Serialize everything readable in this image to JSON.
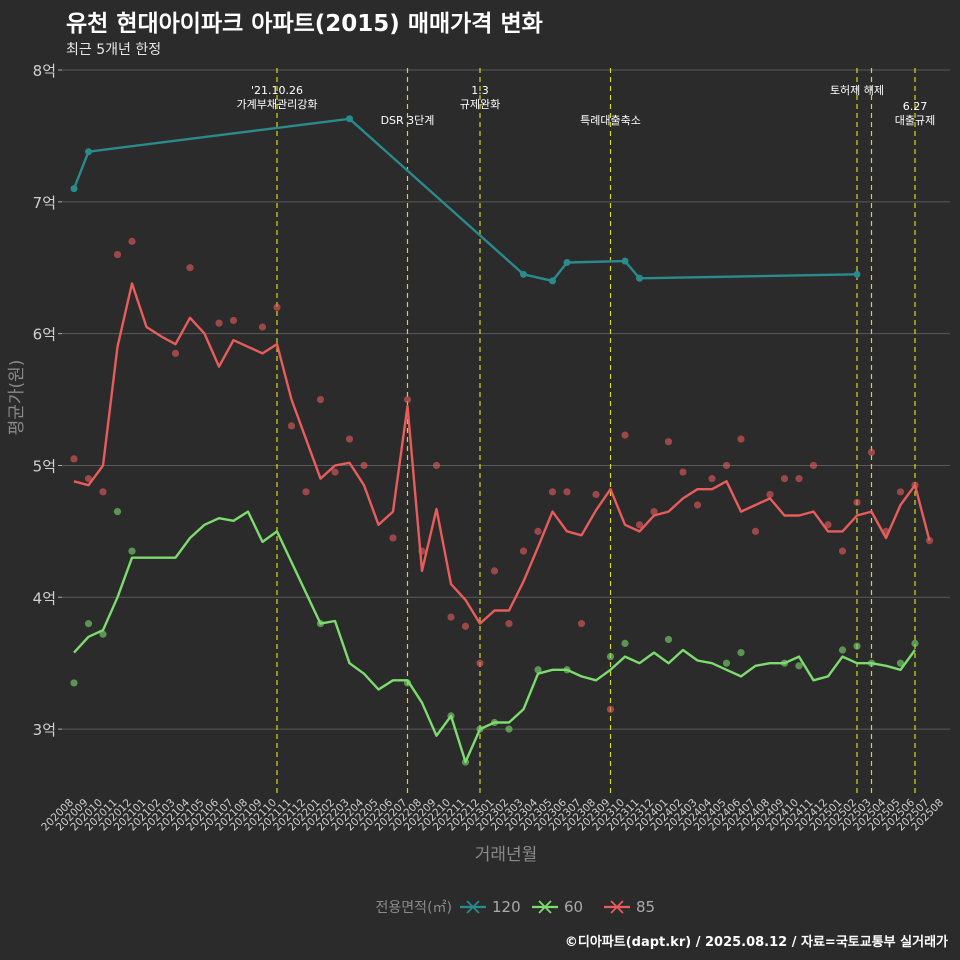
{
  "header": {
    "title": "유천 현대아이파크 아파트(2015) 매매가격 변화",
    "subtitle": "최근 5개년 한정"
  },
  "footer": {
    "credit": "©디아파트(dapt.kr) / 2025.08.12 / 자료=국토교통부 실거래가"
  },
  "chart_data": {
    "type": "line",
    "title": "유천 현대아이파크 아파트(2015) 매매가격 변화",
    "subtitle": "최근 5개년 한정",
    "xlabel": "거래년월",
    "ylabel": "평균가(원)",
    "ylim": [
      2.5,
      8.0
    ],
    "yticks": [
      {
        "v": 3,
        "label": "3억"
      },
      {
        "v": 4,
        "label": "4억"
      },
      {
        "v": 5,
        "label": "5억"
      },
      {
        "v": 6,
        "label": "6억"
      },
      {
        "v": 7,
        "label": "7억"
      },
      {
        "v": 8,
        "label": "8억"
      }
    ],
    "categories": [
      "202008",
      "202009",
      "202010",
      "202011",
      "202012",
      "202101",
      "202102",
      "202103",
      "202104",
      "202105",
      "202106",
      "202107",
      "202108",
      "202109",
      "202110",
      "202111",
      "202112",
      "202201",
      "202202",
      "202203",
      "202204",
      "202205",
      "202206",
      "202207",
      "202208",
      "202209",
      "202210",
      "202211",
      "202212",
      "202301",
      "202302",
      "202303",
      "202304",
      "202305",
      "202306",
      "202307",
      "202308",
      "202309",
      "202310",
      "202311",
      "202312",
      "202401",
      "202402",
      "202403",
      "202404",
      "202405",
      "202406",
      "202407",
      "202408",
      "202409",
      "202410",
      "202411",
      "202412",
      "202501",
      "202502",
      "202503",
      "202504",
      "202505",
      "202506",
      "202507",
      "202508"
    ],
    "grid": true,
    "legend": {
      "title": "전용면적(㎡)",
      "position": "bottom"
    },
    "series": [
      {
        "name": "120",
        "color": "#2a8a8c",
        "points": [
          [
            "202008",
            7.1
          ],
          [
            "202009",
            7.38
          ],
          [
            "202203",
            7.63
          ],
          [
            "202303",
            6.45
          ],
          [
            "202305",
            6.4
          ],
          [
            "202306",
            6.54
          ],
          [
            "202310",
            6.55
          ],
          [
            "202311",
            6.42
          ],
          [
            "202502",
            6.45
          ]
        ],
        "markers": []
      },
      {
        "name": "60",
        "color": "#7ddc6e",
        "points": [
          [
            "202008",
            3.58
          ],
          [
            "202009",
            3.7
          ],
          [
            "202010",
            3.75
          ],
          [
            "202011",
            4.0
          ],
          [
            "202012",
            4.3
          ],
          [
            "202103",
            4.3
          ],
          [
            "202104",
            4.45
          ],
          [
            "202105",
            4.55
          ],
          [
            "202106",
            4.6
          ],
          [
            "202107",
            4.58
          ],
          [
            "202108",
            4.65
          ],
          [
            "202109",
            4.42
          ],
          [
            "202110",
            4.5
          ],
          [
            "202201",
            3.8
          ],
          [
            "202202",
            3.82
          ],
          [
            "202203",
            3.5
          ],
          [
            "202204",
            3.42
          ],
          [
            "202205",
            3.3
          ],
          [
            "202206",
            3.37
          ],
          [
            "202207",
            3.37
          ],
          [
            "202208",
            3.2
          ],
          [
            "202209",
            2.95
          ],
          [
            "202210",
            3.1
          ],
          [
            "202211",
            2.75
          ],
          [
            "202212",
            3.0
          ],
          [
            "202301",
            3.05
          ],
          [
            "202302",
            3.05
          ],
          [
            "202303",
            3.15
          ],
          [
            "202304",
            3.42
          ],
          [
            "202305",
            3.45
          ],
          [
            "202306",
            3.45
          ],
          [
            "202307",
            3.4
          ],
          [
            "202308",
            3.37
          ],
          [
            "202309",
            3.45
          ],
          [
            "202310",
            3.55
          ],
          [
            "202311",
            3.5
          ],
          [
            "202312",
            3.58
          ],
          [
            "202401",
            3.5
          ],
          [
            "202402",
            3.6
          ],
          [
            "202403",
            3.52
          ],
          [
            "202404",
            3.5
          ],
          [
            "202405",
            3.45
          ],
          [
            "202406",
            3.4
          ],
          [
            "202407",
            3.48
          ],
          [
            "202408",
            3.5
          ],
          [
            "202409",
            3.5
          ],
          [
            "202410",
            3.55
          ],
          [
            "202411",
            3.37
          ],
          [
            "202412",
            3.4
          ],
          [
            "202501",
            3.55
          ],
          [
            "202502",
            3.5
          ],
          [
            "202503",
            3.5
          ],
          [
            "202504",
            3.48
          ],
          [
            "202505",
            3.45
          ],
          [
            "202506",
            3.6
          ]
        ],
        "markers": [
          [
            "202008",
            3.35
          ],
          [
            "202009",
            3.8
          ],
          [
            "202010",
            3.72
          ],
          [
            "202011",
            4.65
          ],
          [
            "202012",
            4.35
          ],
          [
            "202201",
            3.8
          ],
          [
            "202207",
            3.35
          ],
          [
            "202210",
            3.1
          ],
          [
            "202211",
            2.75
          ],
          [
            "202212",
            3.0
          ],
          [
            "202301",
            3.05
          ],
          [
            "202302",
            3.0
          ],
          [
            "202304",
            3.45
          ],
          [
            "202306",
            3.45
          ],
          [
            "202309",
            3.55
          ],
          [
            "202310",
            3.65
          ],
          [
            "202401",
            3.68
          ],
          [
            "202405",
            3.5
          ],
          [
            "202406",
            3.58
          ],
          [
            "202409",
            3.5
          ],
          [
            "202410",
            3.48
          ],
          [
            "202501",
            3.6
          ],
          [
            "202502",
            3.63
          ],
          [
            "202503",
            3.5
          ],
          [
            "202505",
            3.5
          ],
          [
            "202506",
            3.65
          ]
        ]
      },
      {
        "name": "85",
        "color": "#e85c5c",
        "points": [
          [
            "202008",
            4.88
          ],
          [
            "202009",
            4.85
          ],
          [
            "202010",
            5.0
          ],
          [
            "202011",
            5.9
          ],
          [
            "202012",
            6.38
          ],
          [
            "202101",
            6.05
          ],
          [
            "202102",
            5.98
          ],
          [
            "202103",
            5.92
          ],
          [
            "202104",
            6.12
          ],
          [
            "202105",
            6.0
          ],
          [
            "202106",
            5.75
          ],
          [
            "202107",
            5.95
          ],
          [
            "202108",
            5.9
          ],
          [
            "202109",
            5.85
          ],
          [
            "202110",
            5.92
          ],
          [
            "202111",
            5.5
          ],
          [
            "202112",
            5.2
          ],
          [
            "202201",
            4.9
          ],
          [
            "202202",
            5.0
          ],
          [
            "202203",
            5.02
          ],
          [
            "202204",
            4.85
          ],
          [
            "202205",
            4.55
          ],
          [
            "202206",
            4.65
          ],
          [
            "202207",
            5.45
          ],
          [
            "202208",
            4.2
          ],
          [
            "202209",
            4.67
          ],
          [
            "202210",
            4.1
          ],
          [
            "202211",
            3.98
          ],
          [
            "202212",
            3.8
          ],
          [
            "202301",
            3.9
          ],
          [
            "202302",
            3.9
          ],
          [
            "202303",
            4.12
          ],
          [
            "202304",
            4.38
          ],
          [
            "202305",
            4.65
          ],
          [
            "202306",
            4.5
          ],
          [
            "202307",
            4.47
          ],
          [
            "202308",
            4.66
          ],
          [
            "202309",
            4.82
          ],
          [
            "202310",
            4.55
          ],
          [
            "202311",
            4.5
          ],
          [
            "202312",
            4.62
          ],
          [
            "202401",
            4.65
          ],
          [
            "202402",
            4.75
          ],
          [
            "202403",
            4.82
          ],
          [
            "202404",
            4.82
          ],
          [
            "202405",
            4.88
          ],
          [
            "202406",
            4.65
          ],
          [
            "202407",
            4.7
          ],
          [
            "202408",
            4.75
          ],
          [
            "202409",
            4.62
          ],
          [
            "202410",
            4.62
          ],
          [
            "202411",
            4.65
          ],
          [
            "202412",
            4.5
          ],
          [
            "202501",
            4.5
          ],
          [
            "202502",
            4.62
          ],
          [
            "202503",
            4.65
          ],
          [
            "202504",
            4.45
          ],
          [
            "202505",
            4.7
          ],
          [
            "202506",
            4.85
          ],
          [
            "202507",
            4.43
          ]
        ],
        "markers": [
          [
            "202008",
            5.05
          ],
          [
            "202009",
            4.9
          ],
          [
            "202010",
            4.8
          ],
          [
            "202011",
            6.6
          ],
          [
            "202012",
            6.7
          ],
          [
            "202103",
            5.85
          ],
          [
            "202104",
            6.5
          ],
          [
            "202106",
            6.08
          ],
          [
            "202107",
            6.1
          ],
          [
            "202109",
            6.05
          ],
          [
            "202110",
            6.2
          ],
          [
            "202111",
            5.3
          ],
          [
            "202112",
            4.8
          ],
          [
            "202201",
            5.5
          ],
          [
            "202202",
            4.95
          ],
          [
            "202203",
            5.2
          ],
          [
            "202204",
            5.0
          ],
          [
            "202206",
            4.45
          ],
          [
            "202207",
            5.5
          ],
          [
            "202208",
            4.35
          ],
          [
            "202209",
            5.0
          ],
          [
            "202210",
            3.85
          ],
          [
            "202211",
            3.78
          ],
          [
            "202212",
            3.5
          ],
          [
            "202301",
            4.2
          ],
          [
            "202302",
            3.8
          ],
          [
            "202303",
            4.35
          ],
          [
            "202304",
            4.5
          ],
          [
            "202305",
            4.8
          ],
          [
            "202306",
            4.8
          ],
          [
            "202307",
            3.8
          ],
          [
            "202308",
            4.78
          ],
          [
            "202309",
            3.15
          ],
          [
            "202310",
            5.23
          ],
          [
            "202311",
            4.55
          ],
          [
            "202312",
            4.65
          ],
          [
            "202401",
            5.18
          ],
          [
            "202402",
            4.95
          ],
          [
            "202403",
            4.7
          ],
          [
            "202404",
            4.9
          ],
          [
            "202405",
            5.0
          ],
          [
            "202406",
            5.2
          ],
          [
            "202407",
            4.5
          ],
          [
            "202408",
            4.78
          ],
          [
            "202409",
            4.9
          ],
          [
            "202410",
            4.9
          ],
          [
            "202411",
            5.0
          ],
          [
            "202412",
            4.55
          ],
          [
            "202501",
            4.35
          ],
          [
            "202502",
            4.72
          ],
          [
            "202503",
            5.1
          ],
          [
            "202504",
            4.5
          ],
          [
            "202505",
            4.8
          ],
          [
            "202506",
            4.85
          ],
          [
            "202507",
            4.43
          ]
        ]
      }
    ],
    "annotations": [
      {
        "x": "202110",
        "lines": [
          "'21.10.26",
          "가계부채관리강화"
        ],
        "row": 1
      },
      {
        "x": "202207",
        "lines": [
          "DSR 3단계"
        ],
        "row": 2
      },
      {
        "x": "202212",
        "lines": [
          "1.3",
          "규제완화"
        ],
        "row": 1
      },
      {
        "x": "202309",
        "lines": [
          "특례대출축소"
        ],
        "row": 2
      },
      {
        "x": "202502",
        "lines": [
          "토허제 해제"
        ],
        "row": 1
      },
      {
        "x": "202503",
        "lines": [],
        "row": 1
      },
      {
        "x": "202506",
        "lines": [
          "6.27",
          "대출규제"
        ],
        "row": 2
      }
    ]
  }
}
